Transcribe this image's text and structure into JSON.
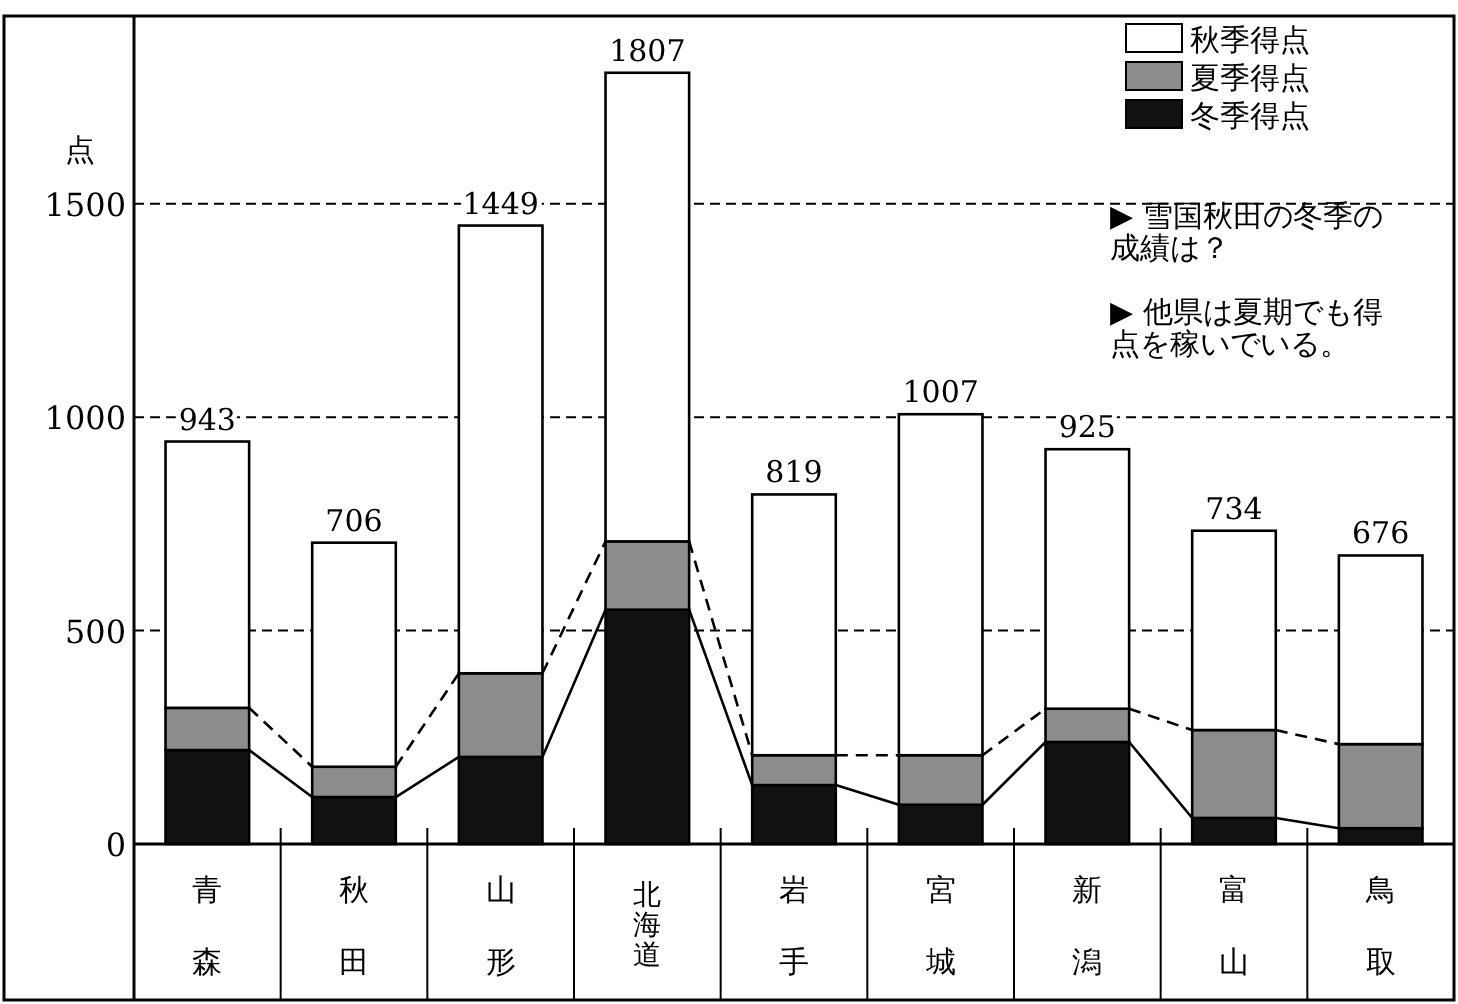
{
  "chart_data": {
    "type": "bar",
    "stacked": true,
    "ylabel": "点",
    "categories": [
      "青森",
      "秋田",
      "山形",
      "北海道",
      "岩手",
      "宮城",
      "新潟",
      "富山",
      "鳥取"
    ],
    "series": [
      {
        "name": "冬季得点",
        "color": "#111111",
        "values": [
          220,
          110,
          204,
          549,
          138,
          92,
          239,
          61,
          37
        ]
      },
      {
        "name": "夏季得点",
        "color": "#8c8c8c",
        "values": [
          99,
          71,
          196,
          160,
          70,
          116,
          78,
          206,
          197
        ]
      },
      {
        "name": "秋季得点",
        "color": "#ffffff",
        "values": [
          624,
          525,
          1049,
          1098,
          611,
          799,
          608,
          467,
          442
        ]
      }
    ],
    "totals": [
      "943",
      "706",
      "1449",
      "1807",
      "819",
      "1007",
      "925",
      "734",
      "676"
    ],
    "ylim": [
      0,
      1940
    ],
    "yticks": [
      0,
      500,
      1000,
      1500
    ],
    "grid": "y",
    "legend": "top right",
    "annotations": [
      "▶ 雪国秋田の冬季の成績は？",
      "▶ 他県は夏期でも得点を稼いでいる。"
    ]
  }
}
